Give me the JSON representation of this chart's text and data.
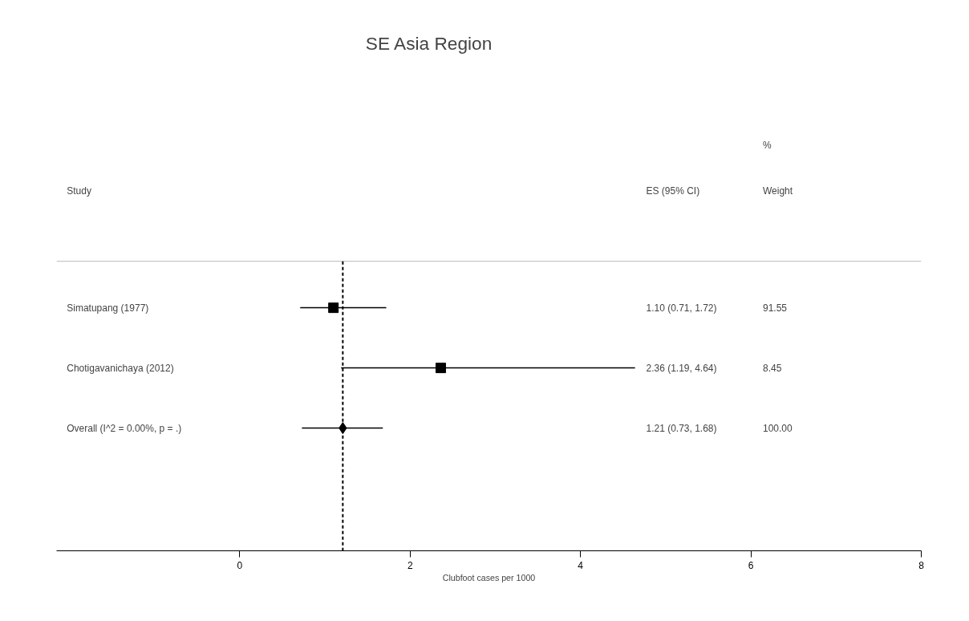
{
  "chart_data": {
    "type": "scatter",
    "orientation": "horizontal",
    "title": "SE Asia Region",
    "xlabel": "Clubfoot cases per 1000",
    "categories": [
      "Simatupang (1977)",
      "Chotigavanichaya (2012)",
      "Overall  (I^2 = 0.00%, p = .)"
    ],
    "series": [
      {
        "marker": "square",
        "color": "#000000",
        "values": [
          1.1,
          2.36,
          null
        ],
        "errors": [
          [
            0.71,
            1.72
          ],
          [
            1.19,
            4.64
          ],
          null
        ]
      },
      {
        "marker": "diamond",
        "color": "#000000",
        "values": [
          null,
          null,
          1.21
        ],
        "errors": [
          null,
          null,
          [
            0.73,
            1.68
          ]
        ]
      }
    ],
    "value_labels": [
      "1.10 (0.71, 1.72)",
      "2.36 (1.19, 4.64)",
      "1.21 (0.73, 1.68)"
    ],
    "annotations": [
      "%",
      "Study",
      "ES (95% CI)",
      "Weight",
      "91.55",
      "8.45",
      "100.00"
    ],
    "ref_lines": [
      {
        "axis": "x",
        "value": 1.21,
        "line_style": "dashed",
        "color": "#000000"
      }
    ],
    "xlim": [
      -2.15,
      8
    ],
    "xticks": [
      0,
      2,
      4,
      6,
      8
    ],
    "grid": false
  }
}
